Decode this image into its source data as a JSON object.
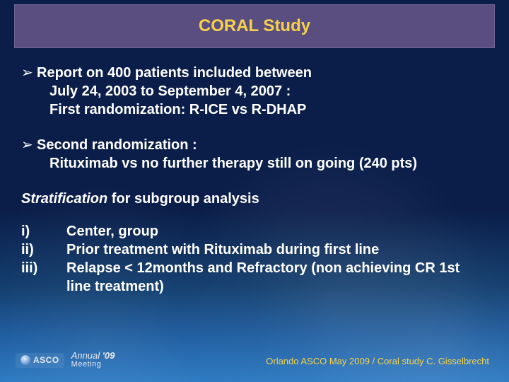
{
  "title": "CORAL Study",
  "bullets": [
    {
      "lead": "Report on 400 patients included between",
      "lines": [
        "July  24, 2003 to September 4, 2007 :",
        "First randomization: R-ICE vs R-DHAP"
      ]
    },
    {
      "lead": "Second randomization :",
      "lines": [
        "Rituximab vs no further therapy still on going (240 pts)"
      ]
    }
  ],
  "strat": {
    "italic": "Stratification",
    "rest": " for subgroup analysis"
  },
  "roman": [
    {
      "label": "i)",
      "text": "Center, group"
    },
    {
      "label": "ii)",
      "text": "Prior treatment with Rituximab during first line"
    },
    {
      "label": "iii)",
      "text": "Relapse < 12months and Refractory (non achieving CR 1st line treatment)"
    }
  ],
  "logo": {
    "org": "ASCO",
    "annual": "Annual ",
    "year": "'09",
    "meeting": "Meeting"
  },
  "credit": "Orlando ASCO May 2009 / Coral study  C. Gisselbrecht",
  "style": {
    "title_bg": "#5a4e80",
    "title_color": "#f6d24a",
    "body_color": "#ffffff",
    "credit_color": "#f6d24a",
    "title_fontsize": 24,
    "body_fontsize": 20,
    "credit_fontsize": 13,
    "bg_gradient": [
      "#0b1e4a",
      "#0b1e4a",
      "#0e3a6b",
      "#1a5a9e",
      "#2a78c2"
    ]
  }
}
